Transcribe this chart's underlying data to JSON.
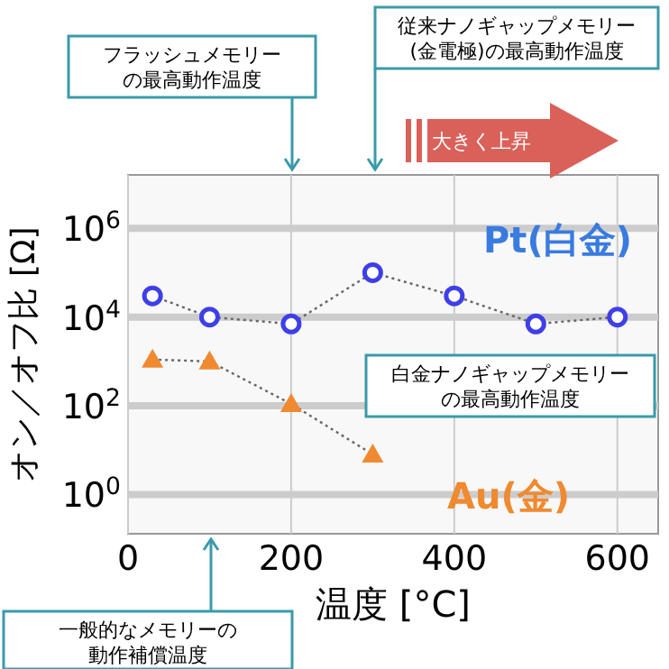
{
  "chart_data": {
    "type": "line",
    "xlabel": "温度 [°C]",
    "ylabel": "オン／オフ比 [Ω]",
    "xlim": [
      0,
      650
    ],
    "xticks": [
      0,
      200,
      400,
      600
    ],
    "ylim": [
      0.13,
      16000000
    ],
    "log": true,
    "yticks": [
      {
        "value": 1,
        "label": "10$^{0}$"
      },
      {
        "value": 100,
        "label": "10$^{2}$"
      },
      {
        "value": 10000,
        "label": "10$^{4}$"
      },
      {
        "value": 1000000,
        "label": "10$^{6}$"
      }
    ],
    "grid": true,
    "line_style": "dotted",
    "series": [
      {
        "name": "Pt(白金)",
        "color": "#3f3fe8",
        "marker": "circle",
        "x": [
          30,
          100,
          200,
          300,
          400,
          500,
          600
        ],
        "values": [
          30000,
          10000,
          7000,
          100000,
          30000,
          7000,
          10000
        ]
      },
      {
        "name": "Au(金)",
        "color": "#f08a30",
        "marker": "triangle",
        "x": [
          30,
          100,
          200,
          300
        ],
        "values": [
          1100,
          1000,
          110,
          8
        ]
      }
    ],
    "annotations": [
      "フラッシュメモリーの最高動作温度",
      "従来ナノギャップメモリー(金電極)の最高動作温度",
      "一般的なメモリーの動作補償温度",
      "白金ナノギャップメモリーの最高動作温度",
      "大きく上昇"
    ]
  }
}
